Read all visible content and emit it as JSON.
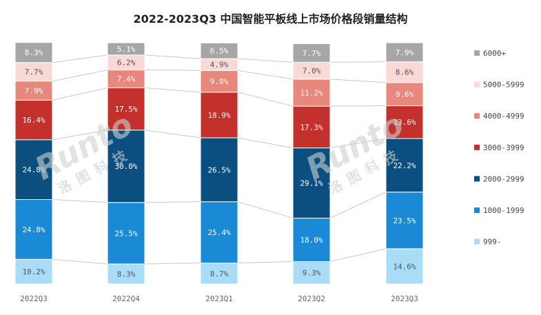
{
  "chart_data": {
    "type": "bar",
    "stacked": true,
    "title": "2022-2023Q3 中国智能平板线上市场价格段销量结构",
    "categories": [
      "2022Q3",
      "2022Q4",
      "2023Q1",
      "2023Q2",
      "2023Q3"
    ],
    "ylim": [
      0,
      100
    ],
    "legend_position": "right",
    "series": [
      {
        "name": "999-",
        "color": "#a8dcf7",
        "values": [
          10.2,
          8.3,
          8.7,
          9.3,
          14.6
        ]
      },
      {
        "name": "1000-1999",
        "color": "#1a8ad6",
        "values": [
          24.8,
          25.5,
          25.4,
          18.0,
          23.5
        ]
      },
      {
        "name": "2000-2999",
        "color": "#0b4f80",
        "values": [
          24.8,
          30.0,
          26.5,
          29.1,
          22.2
        ]
      },
      {
        "name": "3000-3999",
        "color": "#c4302b",
        "values": [
          16.4,
          17.5,
          18.9,
          17.3,
          13.6
        ]
      },
      {
        "name": "4000-4999",
        "color": "#e8887d",
        "values": [
          7.9,
          7.4,
          9.0,
          11.2,
          9.6
        ]
      },
      {
        "name": "5000-5999",
        "color": "#f8d9d6",
        "values": [
          7.7,
          6.2,
          4.9,
          7.0,
          8.6
        ]
      },
      {
        "name": "6000+",
        "color": "#a6a6a6",
        "values": [
          8.3,
          5.1,
          6.5,
          7.7,
          7.9
        ]
      }
    ],
    "watermark": {
      "text": "Runto",
      "subtext": "洛图科技"
    }
  }
}
